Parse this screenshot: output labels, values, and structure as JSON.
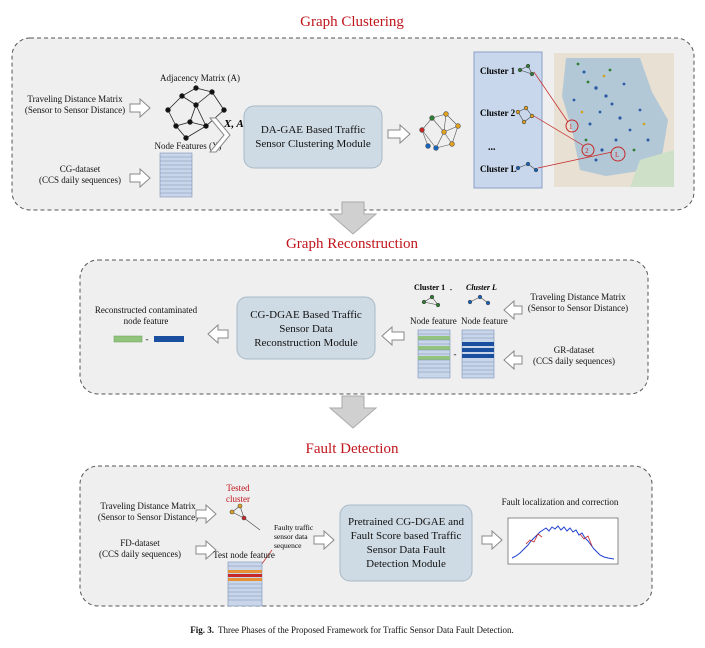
{
  "phase1": {
    "title": "Graph Clustering",
    "input1": [
      "Traveling Distance Matrix",
      "(Sensor to Sensor Distance)"
    ],
    "input2": [
      "CG-dataset",
      "(CCS daily sequences)"
    ],
    "adjacency_label": "Adjacency Matrix (A)",
    "node_features_label": "Node Features (X)",
    "xa_label": "X, A",
    "module": [
      "DA-GAE Based Traffic",
      "Sensor Clustering Module"
    ],
    "clusters": [
      "Cluster 1",
      "Cluster 2",
      "...",
      "Cluster L"
    ],
    "map_markers": [
      "1",
      "2",
      "L"
    ]
  },
  "phase2": {
    "title": "Graph Reconstruction",
    "output": [
      "Reconstructed contaminated",
      "node feature"
    ],
    "module": [
      "CG-DGAE Based Traffic",
      "Sensor Data",
      "Reconstruction Module"
    ],
    "cluster1": "Cluster 1",
    "clusterL": "Cluster L",
    "sep": "-",
    "node_feature": "Node feature",
    "input1": [
      "Traveling Distance Matrix",
      "(Sensor to Sensor Distance)"
    ],
    "input2": [
      "GR-dataset",
      "(CCS daily sequences)"
    ]
  },
  "phase3": {
    "title": "Fault Detection",
    "tested_cluster": [
      "Tested",
      "cluster"
    ],
    "input1": [
      "Traveling Distance Matrix",
      "(Sensor to Sensor Distance)"
    ],
    "input2": [
      "FD-dataset",
      "(CCS daily sequences)"
    ],
    "faulty_seq": [
      "Faulty traffic",
      "sensor data",
      "sequence"
    ],
    "test_node_feature": "Test node feature",
    "module": [
      "Pretrained CG-DGAE and",
      "Fault Score based Traffic",
      "Sensor Data Fault",
      "Detection Module"
    ],
    "output": "Fault localization and correction"
  },
  "caption": {
    "bold": "Fig. 3.",
    "text": "Three Phases of the Proposed Framework for Traffic Sensor Data Fault Detection."
  },
  "colors": {
    "title_red": "#c0151b",
    "module_fill": "#cfdbe4",
    "panel_fill": "#efefef",
    "green": "#93c47d",
    "blue": "#1a4fa0",
    "orange": "#e69138"
  }
}
